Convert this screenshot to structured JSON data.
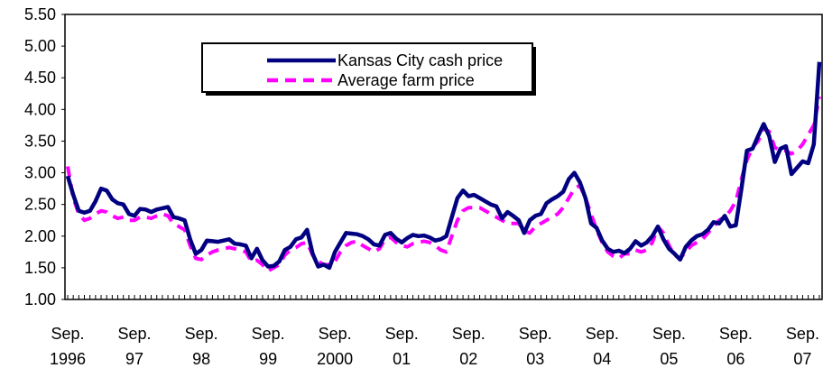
{
  "chart_data": {
    "type": "line",
    "categories": [
      "Sep. 1996",
      null,
      null,
      null,
      null,
      null,
      null,
      null,
      null,
      null,
      null,
      null,
      "Sep. 97",
      null,
      null,
      null,
      null,
      null,
      null,
      null,
      null,
      null,
      null,
      null,
      "Sep. 98",
      null,
      null,
      null,
      null,
      null,
      null,
      null,
      null,
      null,
      null,
      null,
      "Sep. 99",
      null,
      null,
      null,
      null,
      null,
      null,
      null,
      null,
      null,
      null,
      null,
      "Sep. 2000",
      null,
      null,
      null,
      null,
      null,
      null,
      null,
      null,
      null,
      null,
      null,
      "Sep. 01",
      null,
      null,
      null,
      null,
      null,
      null,
      null,
      null,
      null,
      null,
      null,
      "Sep. 02",
      null,
      null,
      null,
      null,
      null,
      null,
      null,
      null,
      null,
      null,
      null,
      "Sep. 03",
      null,
      null,
      null,
      null,
      null,
      null,
      null,
      null,
      null,
      null,
      null,
      "Sep. 04",
      null,
      null,
      null,
      null,
      null,
      null,
      null,
      null,
      null,
      null,
      null,
      "Sep. 05",
      null,
      null,
      null,
      null,
      null,
      null,
      null,
      null,
      null,
      null,
      null,
      "Sep. 06",
      null,
      null,
      null,
      null,
      null,
      null,
      null,
      null,
      null,
      null,
      null,
      "Sep. 07",
      null,
      null,
      null
    ],
    "series": [
      {
        "name": "Kansas City cash price",
        "color": "#000080",
        "dash": false,
        "values": [
          2.95,
          2.65,
          2.4,
          2.37,
          2.4,
          2.55,
          2.75,
          2.72,
          2.58,
          2.52,
          2.5,
          2.35,
          2.32,
          2.43,
          2.42,
          2.38,
          2.42,
          2.44,
          2.46,
          2.3,
          2.28,
          2.25,
          1.95,
          1.72,
          1.78,
          1.93,
          1.92,
          1.91,
          1.93,
          1.95,
          1.88,
          1.87,
          1.85,
          1.65,
          1.8,
          1.62,
          1.52,
          1.53,
          1.6,
          1.78,
          1.83,
          1.95,
          1.98,
          2.1,
          1.72,
          1.52,
          1.55,
          1.5,
          1.75,
          1.9,
          2.05,
          2.04,
          2.03,
          2.0,
          1.95,
          1.87,
          1.85,
          2.02,
          2.05,
          1.96,
          1.9,
          1.97,
          2.02,
          2.0,
          2.01,
          1.98,
          1.93,
          1.95,
          2.0,
          2.3,
          2.6,
          2.72,
          2.63,
          2.65,
          2.6,
          2.55,
          2.5,
          2.47,
          2.28,
          2.38,
          2.32,
          2.25,
          2.05,
          2.25,
          2.32,
          2.35,
          2.52,
          2.58,
          2.63,
          2.7,
          2.9,
          3.0,
          2.85,
          2.6,
          2.2,
          2.13,
          1.93,
          1.8,
          1.75,
          1.77,
          1.73,
          1.8,
          1.92,
          1.85,
          1.9,
          2.0,
          2.15,
          1.95,
          1.8,
          1.72,
          1.63,
          1.83,
          1.93,
          2.0,
          2.03,
          2.1,
          2.22,
          2.2,
          2.32,
          2.15,
          2.17,
          2.75,
          3.35,
          3.38,
          3.58,
          3.77,
          3.58,
          3.17,
          3.38,
          3.42,
          2.98,
          3.08,
          3.18,
          3.15,
          3.45,
          4.75
        ]
      },
      {
        "name": "Average farm price",
        "color": "#ff00ff",
        "dash": true,
        "values": [
          3.1,
          2.6,
          2.35,
          2.25,
          2.28,
          2.35,
          2.4,
          2.38,
          2.32,
          2.28,
          2.3,
          2.25,
          2.25,
          2.3,
          2.3,
          2.28,
          2.32,
          2.35,
          2.32,
          2.2,
          2.15,
          2.1,
          1.85,
          1.65,
          1.63,
          1.7,
          1.75,
          1.78,
          1.8,
          1.82,
          1.8,
          1.78,
          1.75,
          1.6,
          1.62,
          1.55,
          1.45,
          1.5,
          1.55,
          1.7,
          1.78,
          1.82,
          1.88,
          1.9,
          1.7,
          1.6,
          1.55,
          1.55,
          1.6,
          1.75,
          1.85,
          1.9,
          1.92,
          1.85,
          1.8,
          1.75,
          1.8,
          1.95,
          1.98,
          1.9,
          1.85,
          1.83,
          1.88,
          1.9,
          1.92,
          1.9,
          1.85,
          1.78,
          1.75,
          2.0,
          2.25,
          2.4,
          2.45,
          2.45,
          2.45,
          2.4,
          2.35,
          2.3,
          2.25,
          2.2,
          2.2,
          2.2,
          2.08,
          2.05,
          2.15,
          2.2,
          2.25,
          2.3,
          2.35,
          2.45,
          2.6,
          2.75,
          2.8,
          2.6,
          2.35,
          2.1,
          1.9,
          1.75,
          1.68,
          1.65,
          1.72,
          1.72,
          1.78,
          1.75,
          1.78,
          1.9,
          2.15,
          2.05,
          1.85,
          1.7,
          1.65,
          1.75,
          1.85,
          1.9,
          1.95,
          2.05,
          2.15,
          2.25,
          2.3,
          2.4,
          2.55,
          2.9,
          3.2,
          3.4,
          3.5,
          3.7,
          3.65,
          3.4,
          3.35,
          3.35,
          3.3,
          3.35,
          3.45,
          3.6,
          3.75,
          4.2
        ]
      }
    ],
    "ylim": [
      1,
      5.5
    ],
    "yticks": [
      {
        "value": 1,
        "label": "1.00"
      },
      {
        "value": 1.5,
        "label": "1.50"
      },
      {
        "value": 2,
        "label": "2.00"
      },
      {
        "value": 2.5,
        "label": "2.50"
      },
      {
        "value": 3,
        "label": "3.00"
      },
      {
        "value": 3.5,
        "label": "3.50"
      },
      {
        "value": 4,
        "label": "4.00"
      },
      {
        "value": 4.5,
        "label": "4.50"
      },
      {
        "value": 5,
        "label": "5.00"
      },
      {
        "value": 5.5,
        "label": "5.50"
      }
    ],
    "grid": false
  }
}
